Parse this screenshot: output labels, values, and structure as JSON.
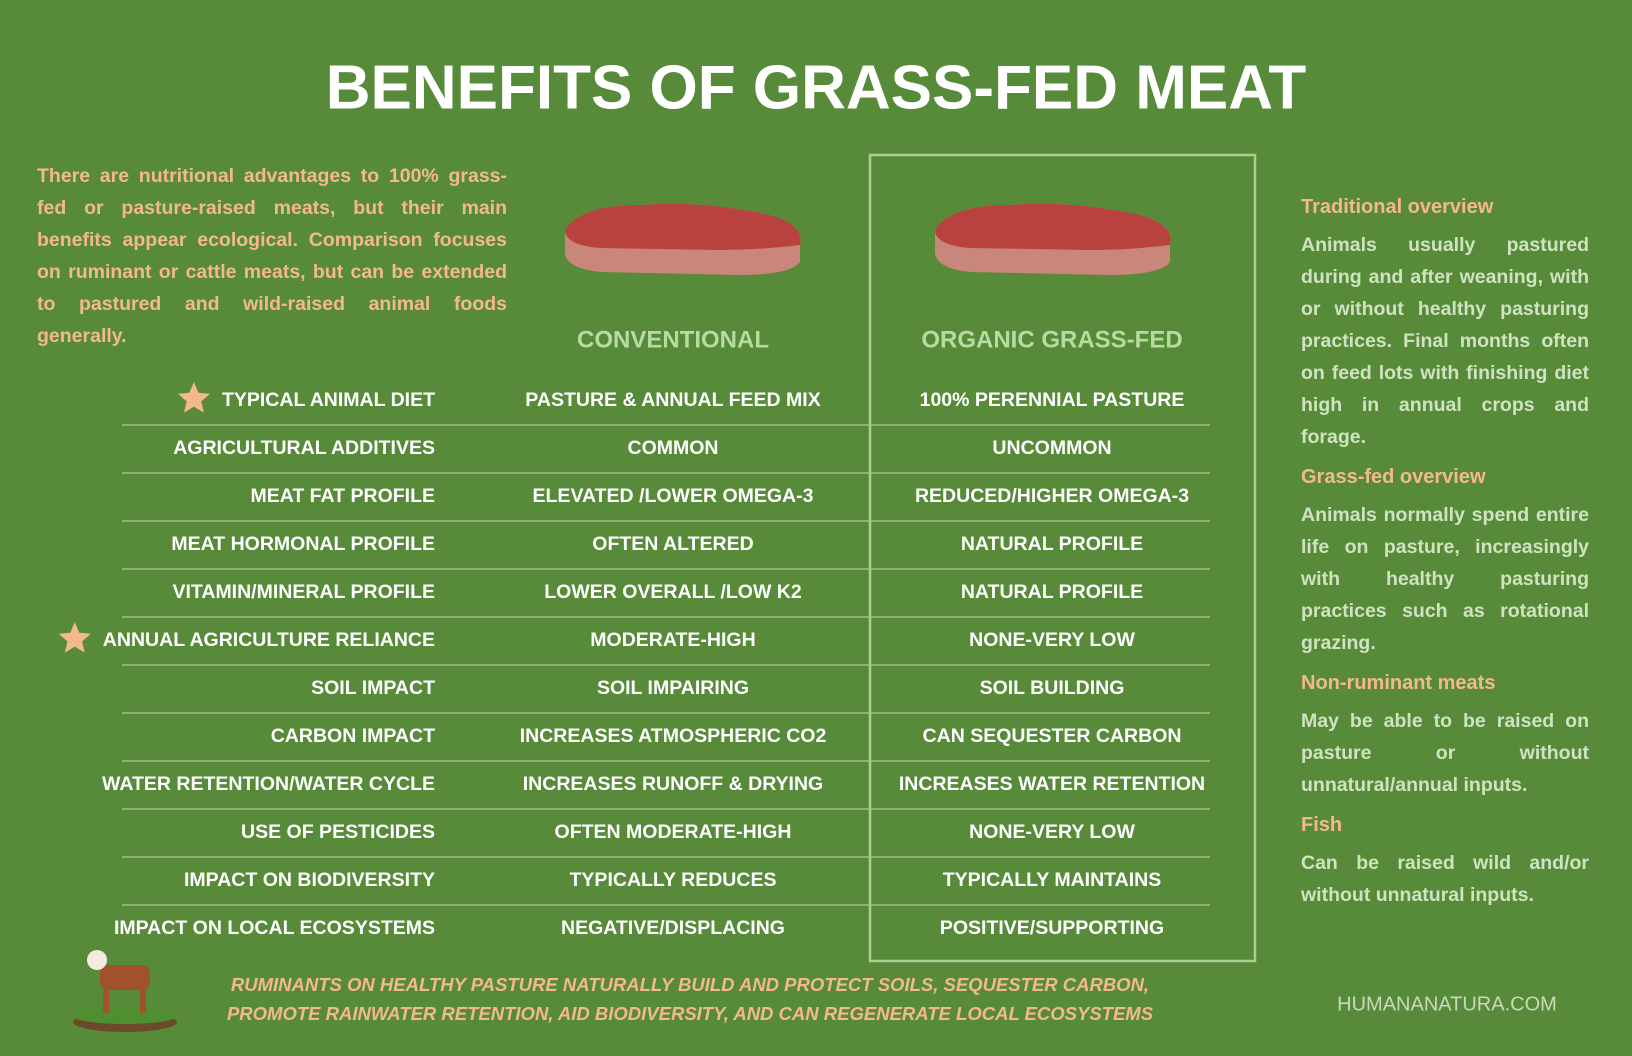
{
  "header": {
    "title": "BENEFITS OF GRASS-FED MEAT"
  },
  "intro": "There are nutritional advantages to 100% grass-fed or pasture-raised meats, but their main benefits appear ecological. Comparison focuses on ruminant or cattle meats, but can be extended to pastured and wild-raised animal foods generally.",
  "table": {
    "columns": [
      "CONVENTIONAL",
      "ORGANIC GRASS-FED"
    ],
    "rows": [
      {
        "label": "TYPICAL ANIMAL DIET",
        "star": true,
        "cells": [
          "PASTURE & ANNUAL FEED MIX",
          "100% PERENNIAL PASTURE"
        ]
      },
      {
        "label": "AGRICULTURAL ADDITIVES",
        "cells": [
          "COMMON",
          "UNCOMMON"
        ]
      },
      {
        "label": "MEAT FAT PROFILE",
        "cells": [
          "ELEVATED /LOWER OMEGA-3",
          "REDUCED/HIGHER OMEGA-3"
        ]
      },
      {
        "label": "MEAT HORMONAL PROFILE",
        "cells": [
          "OFTEN ALTERED",
          "NATURAL PROFILE"
        ]
      },
      {
        "label": "VITAMIN/MINERAL PROFILE",
        "cells": [
          "LOWER OVERALL /LOW K2",
          "NATURAL PROFILE"
        ]
      },
      {
        "label": "ANNUAL AGRICULTURE RELIANCE",
        "star": true,
        "cells": [
          "MODERATE-HIGH",
          "NONE-VERY LOW"
        ]
      },
      {
        "label": "SOIL IMPACT",
        "cells": [
          "SOIL  IMPAIRING",
          "SOIL BUILDING"
        ]
      },
      {
        "label": "CARBON IMPACT",
        "cells": [
          "INCREASES ATMOSPHERIC CO2",
          "CAN SEQUESTER CARBON"
        ]
      },
      {
        "label": "WATER RETENTION/WATER CYCLE",
        "cells": [
          "INCREASES RUNOFF & DRYING",
          "INCREASES WATER RETENTION"
        ]
      },
      {
        "label": "USE OF PESTICIDES",
        "cells": [
          "OFTEN MODERATE-HIGH",
          "NONE-VERY LOW"
        ]
      },
      {
        "label": "IMPACT ON BIODIVERSITY",
        "cells": [
          "TYPICALLY REDUCES",
          "TYPICALLY MAINTAINS"
        ]
      },
      {
        "label": "IMPACT ON LOCAL ECOSYSTEMS",
        "cells": [
          "NEGATIVE/DISPLACING",
          "POSITIVE/SUPPORTING"
        ]
      }
    ]
  },
  "sidebar": [
    {
      "heading": "Traditional overview",
      "text": "Animals usually pastured during and after weaning, with or without healthy pasturing practices. Final months often on feed lots with finishing diet high in annual crops and forage."
    },
    {
      "heading": "Grass-fed overview",
      "text": "Animals normally spend entire life on pasture, increasingly with healthy pasturing practices such as rotational grazing."
    },
    {
      "heading": "Non-ruminant meats",
      "text": "May be able to be raised on pasture or without unnatural/annual inputs."
    },
    {
      "heading": "Fish",
      "text": "Can be raised wild and/or without unnatural inputs."
    }
  ],
  "footer": {
    "note": [
      "RUMINANTS ON HEALTHY PASTURE NATURALLY BUILD AND PROTECT SOILS, SEQUESTER  CARBON,",
      "PROMOTE RAINWATER RETENTION, AID BIODIVERSITY, AND CAN REGENERATE LOCAL ECOSYSTEMS"
    ],
    "source": "HUMANANATURA.COM"
  }
}
